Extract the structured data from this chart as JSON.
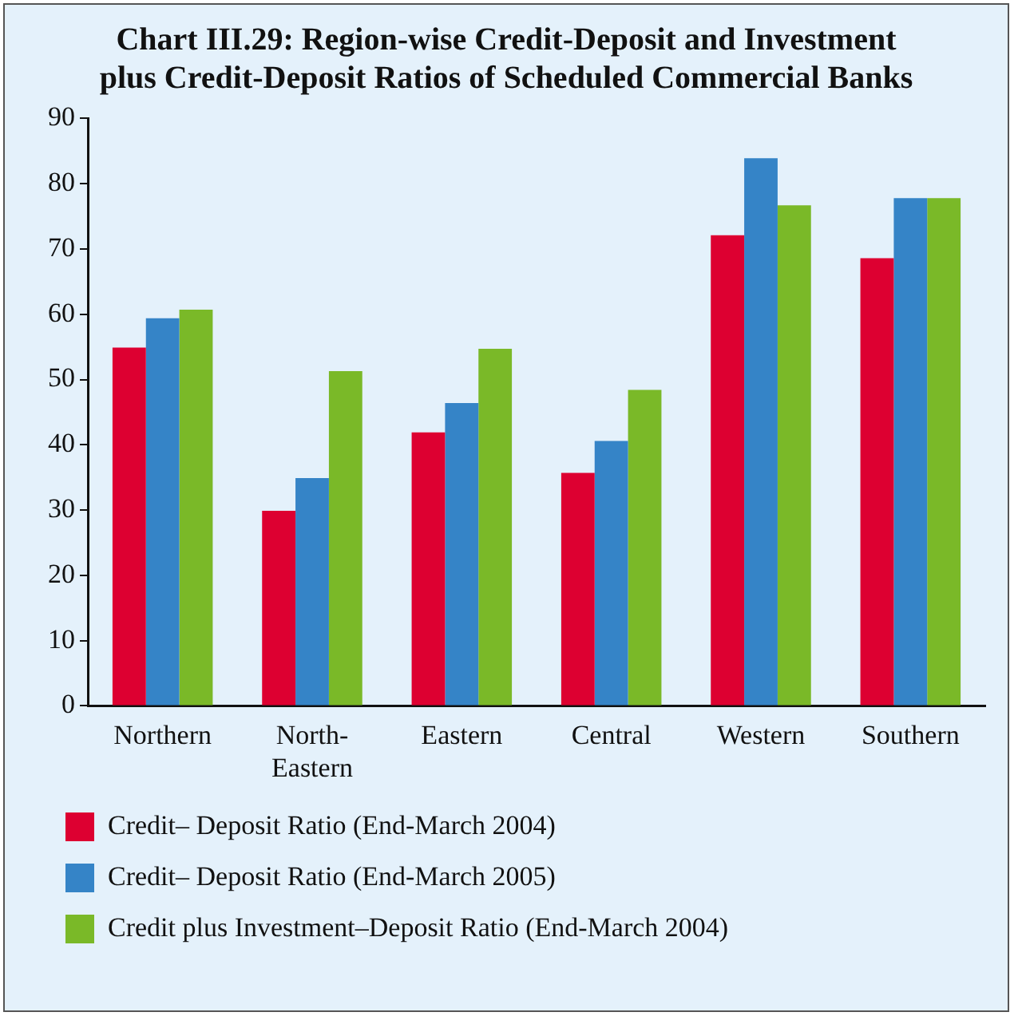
{
  "chart_data": {
    "type": "bar",
    "title": "Chart III.29: Region-wise Credit-Deposit and Investment plus Credit-Deposit Ratios of Scheduled Commercial Banks",
    "categories": [
      "Northern",
      "North-Eastern",
      "Eastern",
      "Central",
      "Western",
      "Southern"
    ],
    "series": [
      {
        "name": "Credit– Deposit Ratio (End-March 2004)",
        "color": "#dd0031",
        "values": [
          54.9,
          29.9,
          41.9,
          35.7,
          72.1,
          68.6
        ]
      },
      {
        "name": "Credit– Deposit Ratio (End-March 2005)",
        "color": "#3584c7",
        "values": [
          59.4,
          34.9,
          46.4,
          40.6,
          83.9,
          77.8
        ]
      },
      {
        "name": "Credit plus Investment–Deposit Ratio (End-March 2004)",
        "color": "#7ab928",
        "values": [
          60.7,
          51.3,
          54.7,
          48.4,
          76.7,
          77.8
        ]
      }
    ],
    "ylim": [
      0,
      90
    ],
    "yticks": [
      0,
      10,
      20,
      30,
      40,
      50,
      60,
      70,
      80,
      90
    ],
    "grid": false,
    "legend": "bottom"
  }
}
